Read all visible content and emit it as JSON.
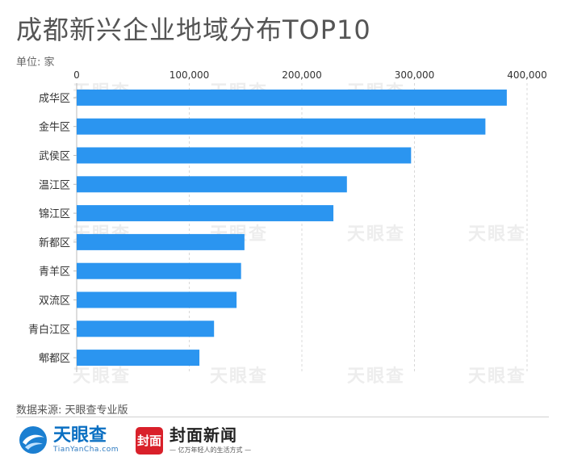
{
  "header": {
    "title": "成都新兴企业地域分布TOP10",
    "unit": "单位: 家"
  },
  "footer": {
    "source": "数据来源: 天眼查专业版",
    "tianyancha_name": "天眼查",
    "tianyancha_url": "TianYanCha.com",
    "fengmian_badge": "封面",
    "fengmian_name": "封面新闻",
    "fengmian_slogan": "— 亿万年轻人的生活方式 —"
  },
  "watermark": {
    "text": "天眼查"
  },
  "chart_data": {
    "type": "bar",
    "orientation": "horizontal",
    "title": "成都新兴企业地域分布TOP10",
    "unit": "家",
    "categories": [
      "成华区",
      "金牛区",
      "武侯区",
      "温江区",
      "锦江区",
      "新都区",
      "青羊区",
      "双流区",
      "青白江区",
      "郫都区"
    ],
    "values": [
      382000,
      363000,
      297000,
      240000,
      228000,
      149000,
      146000,
      142000,
      122000,
      109000
    ],
    "xlim": [
      0,
      400000
    ],
    "xticks": [
      0,
      100000,
      200000,
      300000,
      400000
    ],
    "xtick_labels": [
      "0",
      "100,000",
      "200,000",
      "300,000",
      "400,000"
    ],
    "bar_color": "#2b95f0",
    "axis_position": "top",
    "grid": "dashed vertical"
  }
}
